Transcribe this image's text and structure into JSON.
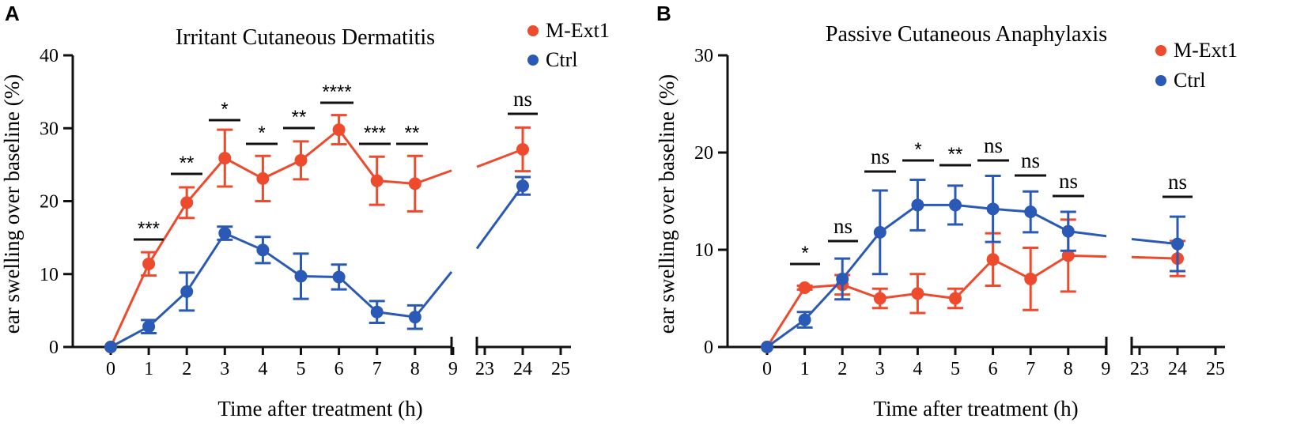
{
  "colors": {
    "mext1": "#ee4a2e",
    "ctrl": "#2a5ab5",
    "axis": "#111111"
  },
  "chart_data": [
    {
      "panel": "A",
      "type": "line",
      "title": "Irritant Cutaneous Dermatitis",
      "xlabel": "Time after treatment (h)",
      "ylabel": "ear swelling over baseline (%)",
      "ylim": [
        0,
        40
      ],
      "yticks": [
        0,
        10,
        20,
        30,
        40
      ],
      "xticks_left": [
        "0",
        "1",
        "2",
        "3",
        "4",
        "5",
        "6",
        "7",
        "8",
        "9"
      ],
      "xticks_right": [
        "23",
        "24",
        "25"
      ],
      "x_break": "between 9 and 23",
      "legend_position": "top-right",
      "series": [
        {
          "name": "M-Ext1",
          "color": "#ee4a2e",
          "x": [
            0,
            1,
            2,
            3,
            4,
            5,
            6,
            7,
            8,
            24
          ],
          "y": [
            0,
            11.4,
            19.8,
            25.9,
            23.1,
            25.6,
            29.8,
            22.8,
            22.4,
            27.1
          ],
          "err": [
            0,
            1.6,
            2.1,
            3.9,
            3.1,
            2.6,
            2.0,
            3.3,
            3.8,
            3.0
          ]
        },
        {
          "name": "Ctrl",
          "color": "#2a5ab5",
          "x": [
            0,
            1,
            2,
            3,
            4,
            5,
            6,
            7,
            8,
            24
          ],
          "y": [
            0,
            2.8,
            7.6,
            15.6,
            13.3,
            9.7,
            9.6,
            4.8,
            4.1,
            22.1
          ],
          "err": [
            0,
            0.9,
            2.6,
            0.9,
            1.8,
            3.1,
            1.7,
            1.5,
            1.6,
            1.2
          ]
        }
      ],
      "significance": [
        {
          "x": 1,
          "label": "***"
        },
        {
          "x": 2,
          "label": "**"
        },
        {
          "x": 3,
          "label": "*"
        },
        {
          "x": 4,
          "label": "*"
        },
        {
          "x": 5,
          "label": "**"
        },
        {
          "x": 6,
          "label": "****"
        },
        {
          "x": 7,
          "label": "***"
        },
        {
          "x": 8,
          "label": "**"
        },
        {
          "x": 24,
          "label": "ns"
        }
      ]
    },
    {
      "panel": "B",
      "type": "line",
      "title": "Passive Cutaneous Anaphylaxis",
      "xlabel": "Time after treatment (h)",
      "ylabel": "ear swelling over baseline (%)",
      "ylim": [
        0,
        30
      ],
      "yticks": [
        0,
        10,
        20,
        30
      ],
      "xticks_left": [
        "0",
        "1",
        "2",
        "3",
        "4",
        "5",
        "6",
        "7",
        "8",
        "9"
      ],
      "xticks_right": [
        "23",
        "24",
        "25"
      ],
      "x_break": "between 9 and 23",
      "legend_position": "top-right",
      "series": [
        {
          "name": "M-Ext1",
          "color": "#ee4a2e",
          "x": [
            0,
            1,
            2,
            3,
            4,
            5,
            6,
            7,
            8,
            24
          ],
          "y": [
            0,
            6.1,
            6.4,
            5.0,
            5.5,
            5.0,
            9.0,
            7.0,
            9.4,
            9.1
          ],
          "err": [
            0,
            0.2,
            1.0,
            1.0,
            2.0,
            1.0,
            2.7,
            3.2,
            3.7,
            1.8
          ]
        },
        {
          "name": "Ctrl",
          "color": "#2a5ab5",
          "x": [
            0,
            1,
            2,
            3,
            4,
            5,
            6,
            7,
            8,
            24
          ],
          "y": [
            0,
            2.8,
            7.0,
            11.8,
            14.6,
            14.6,
            14.2,
            13.9,
            11.9,
            10.6
          ],
          "err": [
            0,
            0.8,
            2.1,
            4.3,
            2.6,
            2.0,
            3.4,
            2.1,
            2.0,
            2.8
          ]
        }
      ],
      "significance": [
        {
          "x": 1,
          "label": "*"
        },
        {
          "x": 2,
          "label": "ns"
        },
        {
          "x": 3,
          "label": "ns"
        },
        {
          "x": 4,
          "label": "*"
        },
        {
          "x": 5,
          "label": "**"
        },
        {
          "x": 6,
          "label": "ns"
        },
        {
          "x": 7,
          "label": "ns"
        },
        {
          "x": 8,
          "label": "ns"
        },
        {
          "x": 24,
          "label": "ns"
        }
      ]
    }
  ]
}
